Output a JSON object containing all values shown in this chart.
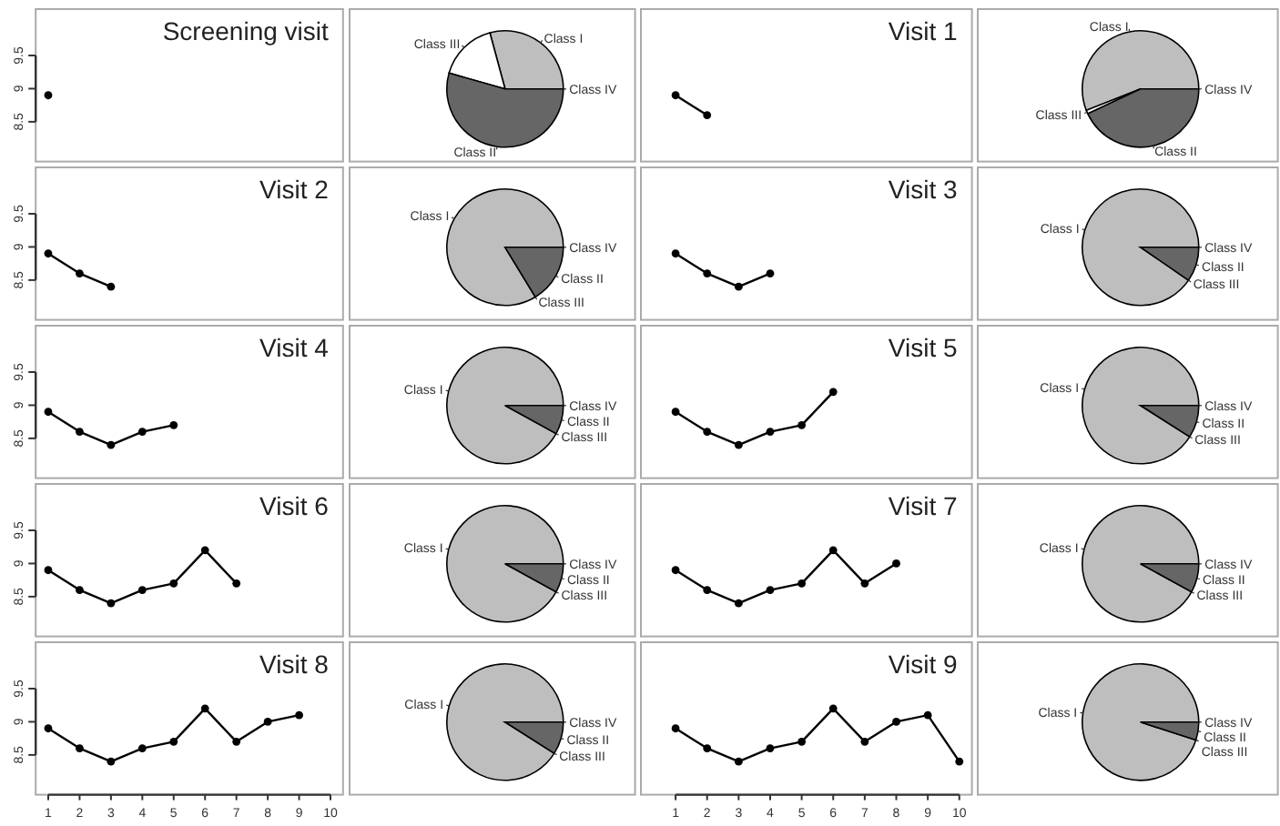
{
  "chart_data": [
    {
      "type": "line",
      "title": "Screening visit",
      "x": [
        1
      ],
      "values": [
        8.9
      ],
      "xlim": [
        0.6,
        10.4
      ],
      "ylim": [
        7.9,
        10.2
      ],
      "yticks": [
        8.5,
        9.0,
        9.5
      ],
      "tick_labels": "y",
      "marker": "circle",
      "color": "#000000"
    },
    {
      "type": "pie",
      "categories": [
        "Class I",
        "Class III",
        "Class II",
        "Class IV"
      ],
      "values": [
        29.2,
        16.4,
        54.4,
        0
      ],
      "colors": [
        "#bebebe",
        "#ffffff",
        "#666666",
        "#000000"
      ]
    },
    {
      "type": "line",
      "title": "Visit 1",
      "x": [
        1,
        2
      ],
      "values": [
        8.9,
        8.6
      ],
      "xlim": [
        -0.1,
        10.4
      ],
      "ylim": [
        7.9,
        10.2
      ],
      "tick_labels": false,
      "marker": "circle",
      "color": "#000000"
    },
    {
      "type": "pie",
      "categories": [
        "Class I",
        "Class III",
        "Class II",
        "Class IV"
      ],
      "values": [
        56,
        1,
        43,
        0
      ],
      "colors": [
        "#bebebe",
        "#ffffff",
        "#666666",
        "#000000"
      ]
    },
    {
      "type": "line",
      "title": "Visit 2",
      "x": [
        1,
        2,
        3
      ],
      "values": [
        8.9,
        8.6,
        8.4
      ],
      "xlim": [
        0.6,
        10.4
      ],
      "ylim": [
        7.9,
        10.2
      ],
      "yticks": [
        8.5,
        9.0,
        9.5
      ],
      "tick_labels": "y",
      "marker": "circle",
      "color": "#000000"
    },
    {
      "type": "pie",
      "categories": [
        "Class I",
        "Class III",
        "Class II",
        "Class IV"
      ],
      "values": [
        83.7,
        0,
        16.3,
        0
      ],
      "colors": [
        "#bebebe",
        "#ffffff",
        "#666666",
        "#000000"
      ]
    },
    {
      "type": "line",
      "title": "Visit 3",
      "x": [
        1,
        2,
        3,
        4
      ],
      "values": [
        8.9,
        8.6,
        8.4,
        8.6
      ],
      "xlim": [
        -0.1,
        10.4
      ],
      "ylim": [
        7.9,
        10.2
      ],
      "tick_labels": false,
      "marker": "circle",
      "color": "#000000"
    },
    {
      "type": "pie",
      "categories": [
        "Class I",
        "Class III",
        "Class II",
        "Class IV"
      ],
      "values": [
        90.4,
        0,
        9.6,
        0
      ],
      "colors": [
        "#bebebe",
        "#ffffff",
        "#666666",
        "#000000"
      ]
    },
    {
      "type": "line",
      "title": "Visit 4",
      "x": [
        1,
        2,
        3,
        4,
        5
      ],
      "values": [
        8.9,
        8.6,
        8.4,
        8.6,
        8.7
      ],
      "xlim": [
        0.6,
        10.4
      ],
      "ylim": [
        7.9,
        10.2
      ],
      "yticks": [
        8.5,
        9.0,
        9.5
      ],
      "tick_labels": "y",
      "marker": "circle",
      "color": "#000000"
    },
    {
      "type": "pie",
      "categories": [
        "Class I",
        "Class III",
        "Class II",
        "Class IV"
      ],
      "values": [
        92,
        0,
        8,
        0
      ],
      "colors": [
        "#bebebe",
        "#ffffff",
        "#666666",
        "#000000"
      ]
    },
    {
      "type": "line",
      "title": "Visit 5",
      "x": [
        1,
        2,
        3,
        4,
        5,
        6
      ],
      "values": [
        8.9,
        8.6,
        8.4,
        8.6,
        8.7,
        9.2
      ],
      "xlim": [
        -0.1,
        10.4
      ],
      "ylim": [
        7.9,
        10.2
      ],
      "tick_labels": false,
      "marker": "circle",
      "color": "#000000"
    },
    {
      "type": "pie",
      "categories": [
        "Class I",
        "Class III",
        "Class II",
        "Class IV"
      ],
      "values": [
        91,
        0,
        9,
        0
      ],
      "colors": [
        "#bebebe",
        "#ffffff",
        "#666666",
        "#000000"
      ]
    },
    {
      "type": "line",
      "title": "Visit 6",
      "x": [
        1,
        2,
        3,
        4,
        5,
        6,
        7
      ],
      "values": [
        8.9,
        8.6,
        8.4,
        8.6,
        8.7,
        9.2,
        8.7
      ],
      "xlim": [
        0.6,
        10.4
      ],
      "ylim": [
        7.9,
        10.2
      ],
      "yticks": [
        8.5,
        9.0,
        9.5
      ],
      "tick_labels": "y",
      "marker": "circle",
      "color": "#000000"
    },
    {
      "type": "pie",
      "categories": [
        "Class I",
        "Class III",
        "Class II",
        "Class IV"
      ],
      "values": [
        92,
        0,
        8,
        0
      ],
      "colors": [
        "#bebebe",
        "#ffffff",
        "#666666",
        "#000000"
      ]
    },
    {
      "type": "line",
      "title": "Visit 7",
      "x": [
        1,
        2,
        3,
        4,
        5,
        6,
        7,
        8
      ],
      "values": [
        8.9,
        8.6,
        8.4,
        8.6,
        8.7,
        9.2,
        8.7,
        9.0
      ],
      "xlim": [
        -0.1,
        10.4
      ],
      "ylim": [
        7.9,
        10.2
      ],
      "tick_labels": false,
      "marker": "circle",
      "color": "#000000"
    },
    {
      "type": "pie",
      "categories": [
        "Class I",
        "Class III",
        "Class II",
        "Class IV"
      ],
      "values": [
        92,
        0,
        8,
        0
      ],
      "colors": [
        "#bebebe",
        "#ffffff",
        "#666666",
        "#000000"
      ]
    },
    {
      "type": "line",
      "title": "Visit 8",
      "x": [
        1,
        2,
        3,
        4,
        5,
        6,
        7,
        8,
        9
      ],
      "values": [
        8.9,
        8.6,
        8.4,
        8.6,
        8.7,
        9.2,
        8.7,
        9.0,
        9.1
      ],
      "xlim": [
        0.6,
        10.4
      ],
      "ylim": [
        7.9,
        10.2
      ],
      "xticks": [
        1,
        2,
        3,
        4,
        5,
        6,
        7,
        8,
        9,
        10
      ],
      "yticks": [
        8.5,
        9.0,
        9.5
      ],
      "marker": "circle",
      "color": "#000000"
    },
    {
      "type": "pie",
      "categories": [
        "Class I",
        "Class III",
        "Class II",
        "Class IV"
      ],
      "values": [
        91,
        0,
        9,
        0
      ],
      "colors": [
        "#bebebe",
        "#ffffff",
        "#666666",
        "#000000"
      ]
    },
    {
      "type": "line",
      "title": "Visit 9",
      "x": [
        1,
        2,
        3,
        4,
        5,
        6,
        7,
        8,
        9,
        10
      ],
      "values": [
        8.9,
        8.6,
        8.4,
        8.6,
        8.7,
        9.2,
        8.7,
        9.0,
        9.1,
        8.4
      ],
      "xlim": [
        -0.1,
        10.4
      ],
      "ylim": [
        7.9,
        10.2
      ],
      "xticks": [
        1,
        2,
        3,
        4,
        5,
        6,
        7,
        8,
        9,
        10
      ],
      "tick_labels": "x",
      "marker": "circle",
      "color": "#000000"
    },
    {
      "type": "pie",
      "categories": [
        "Class I",
        "Class III",
        "Class II",
        "Class IV"
      ],
      "values": [
        95,
        0,
        5,
        0
      ],
      "colors": [
        "#bebebe",
        "#ffffff",
        "#666666",
        "#000000"
      ]
    }
  ]
}
